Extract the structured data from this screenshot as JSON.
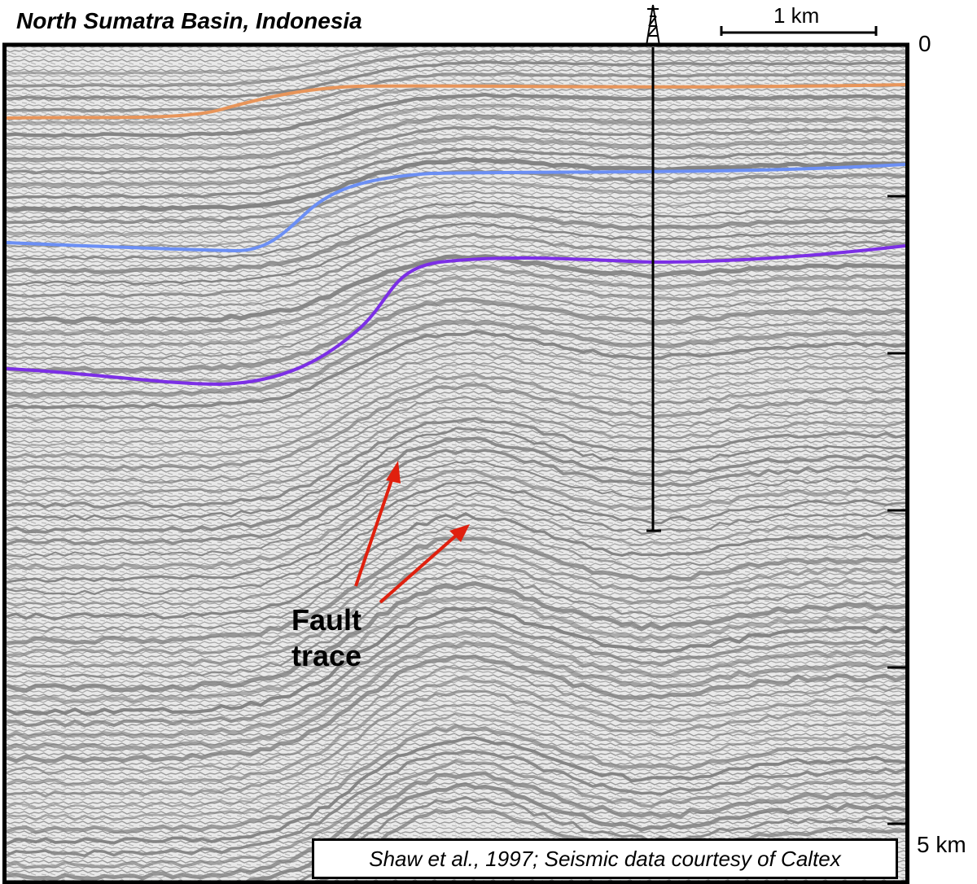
{
  "figure": {
    "title": "North Sumatra Basin, Indonesia",
    "scale_bar_label": "1 km",
    "depth_top_label": "0",
    "depth_bottom_label": "5 km",
    "annotation": "Fault\ntrace",
    "credit": "Shaw et al., 1997; Seismic data courtesy of Caltex"
  },
  "colors": {
    "seismic_background": "#e6e6e6",
    "reflector_gray": "#7d7d7d",
    "horizon_orange": "#e8955a",
    "horizon_blue": "#6b8ff5",
    "horizon_purple": "#7b2ee6",
    "fault_arrow_red": "#e0200e",
    "frame_black": "#000000"
  },
  "icons": {
    "well_derrick": "oil-derrick-icon"
  },
  "horizons": [
    {
      "name": "orange horizon",
      "color": "#e8955a"
    },
    {
      "name": "blue horizon",
      "color": "#6b8ff5"
    },
    {
      "name": "purple horizon",
      "color": "#7b2ee6"
    }
  ]
}
